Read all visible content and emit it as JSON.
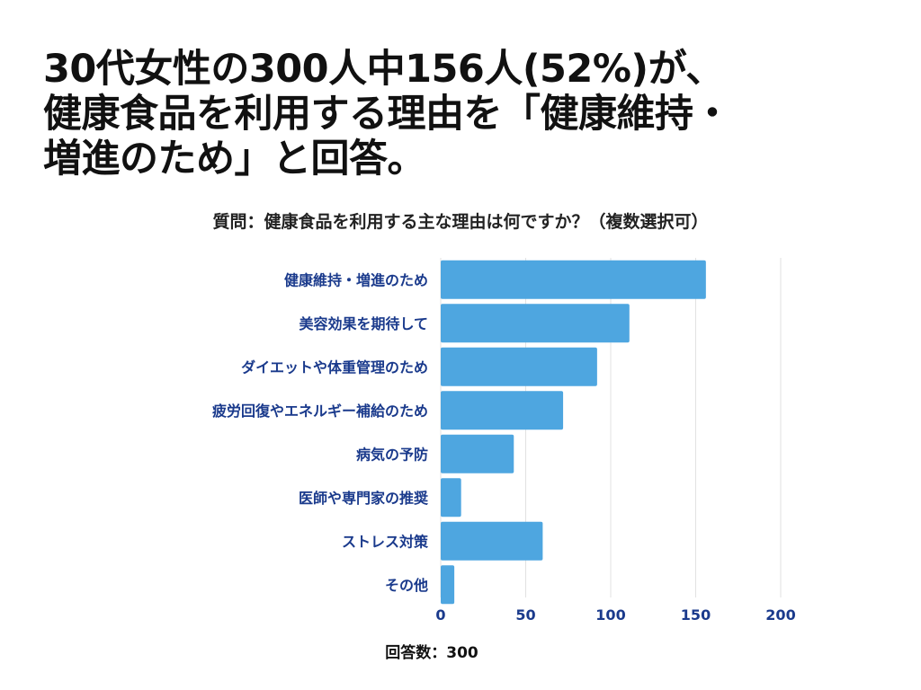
{
  "headline": {
    "lines": [
      "30代女性の300人中156人(52%)が、",
      "健康食品を利用する理由を「健康維持・",
      "増進のため」と回答。"
    ]
  },
  "colors": {
    "bar": "#4ea6e0",
    "label": "#1a3a8c",
    "grid": "#e2e2e2"
  },
  "chart_data": {
    "type": "bar",
    "orientation": "horizontal",
    "title": "質問：健康食品を利用する主な理由は何ですか？（複数選択可）",
    "categories": [
      "健康維持・増進のため",
      "美容効果を期待して",
      "ダイエットや体重管理のため",
      "疲労回復やエネルギー補給のため",
      "病気の予防",
      "医師や専門家の推奨",
      "ストレス対策",
      "その他"
    ],
    "values": [
      156,
      111,
      92,
      72,
      43,
      12,
      60,
      8
    ],
    "xlim": [
      0,
      200
    ],
    "xticks": [
      0,
      50,
      100,
      150,
      200
    ],
    "grid": true,
    "xlabel": "",
    "ylabel": ""
  },
  "footnote": "回答数：300"
}
